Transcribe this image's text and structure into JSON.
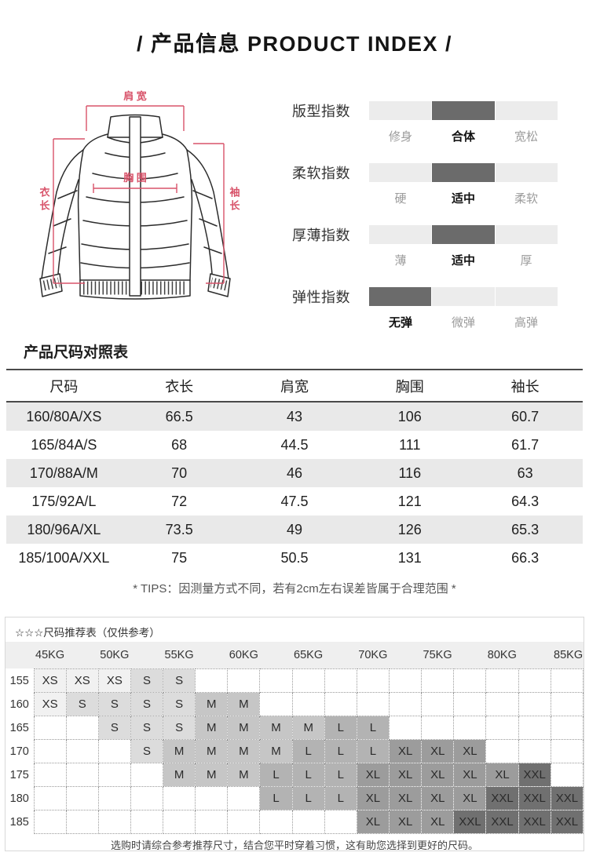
{
  "title": "/  产品信息 PRODUCT INDEX  /",
  "diagram": {
    "shoulder": "肩 宽",
    "chest": "胸 围",
    "length": "衣长",
    "sleeve": "袖长"
  },
  "indexes": [
    {
      "label": "版型指数",
      "options": [
        "修身",
        "合体",
        "宽松"
      ],
      "active": 1
    },
    {
      "label": "柔软指数",
      "options": [
        "硬",
        "适中",
        "柔软"
      ],
      "active": 1
    },
    {
      "label": "厚薄指数",
      "options": [
        "薄",
        "适中",
        "厚"
      ],
      "active": 1
    },
    {
      "label": "弹性指数",
      "options": [
        "无弹",
        "微弹",
        "高弹"
      ],
      "active": 0
    }
  ],
  "size_table": {
    "heading": "产品尺码对照表",
    "columns": [
      "尺码",
      "衣长",
      "肩宽",
      "胸围",
      "袖长"
    ],
    "rows": [
      [
        "160/80A/XS",
        "66.5",
        "43",
        "106",
        "60.7"
      ],
      [
        "165/84A/S",
        "68",
        "44.5",
        "111",
        "61.7"
      ],
      [
        "170/88A/M",
        "70",
        "46",
        "116",
        "63"
      ],
      [
        "175/92A/L",
        "72",
        "47.5",
        "121",
        "64.3"
      ],
      [
        "180/96A/XL",
        "73.5",
        "49",
        "126",
        "65.3"
      ],
      [
        "185/100A/XXL",
        "75",
        "50.5",
        "131",
        "66.3"
      ]
    ],
    "tips": "* TIPS：因测量方式不同，若有2cm左右误差皆属于合理范围 *"
  },
  "recommend": {
    "heading": "☆☆☆尺码推荐表（仅供参考）",
    "weights": [
      "45KG",
      "50KG",
      "55KG",
      "60KG",
      "65KG",
      "70KG",
      "75KG",
      "80KG",
      "85KG"
    ],
    "heights": [
      "155",
      "160",
      "165",
      "170",
      "175",
      "180",
      "185"
    ],
    "grid": [
      [
        "XS",
        "XS",
        "XS",
        "S",
        "S",
        "",
        "",
        "",
        "",
        "",
        "",
        "",
        "",
        "",
        "",
        "",
        ""
      ],
      [
        "XS",
        "S",
        "S",
        "S",
        "S",
        "M",
        "M",
        "",
        "",
        "",
        "",
        "",
        "",
        "",
        "",
        "",
        ""
      ],
      [
        "",
        "",
        "S",
        "S",
        "S",
        "M",
        "M",
        "M",
        "M",
        "L",
        "L",
        "",
        "",
        "",
        "",
        "",
        ""
      ],
      [
        "",
        "",
        "",
        "S",
        "M",
        "M",
        "M",
        "M",
        "L",
        "L",
        "L",
        "XL",
        "XL",
        "XL",
        "",
        "",
        ""
      ],
      [
        "",
        "",
        "",
        "",
        "M",
        "M",
        "M",
        "L",
        "L",
        "L",
        "XL",
        "XL",
        "XL",
        "XL",
        "XL",
        "XXL",
        ""
      ],
      [
        "",
        "",
        "",
        "",
        "",
        "",
        "",
        "L",
        "L",
        "L",
        "XL",
        "XL",
        "XL",
        "XL",
        "XXL",
        "XXL",
        "XXL"
      ],
      [
        "",
        "",
        "",
        "",
        "",
        "",
        "",
        "",
        "",
        "",
        "XL",
        "XL",
        "XL",
        "XXL",
        "XXL",
        "XXL",
        "XXL"
      ]
    ],
    "size_colors": {
      "XS": "#f1f1f1",
      "S": "#dcdcdc",
      "M": "#c6c6c6",
      "L": "#b3b3b3",
      "XL": "#9c9c9c",
      "XXL": "#707070"
    },
    "note": "选购时请综合参考推荐尺寸，结合您平时穿着习惯，这有助您选择到更好的尺码。"
  },
  "colors": {
    "bar_active": "#6b6b6b",
    "bar_inactive": "#ececec",
    "table_stripe": "#e9e9e9",
    "table_line": "#4a4a4a",
    "annotation_red": "#d8536a",
    "grid_dotted": "#999999"
  }
}
